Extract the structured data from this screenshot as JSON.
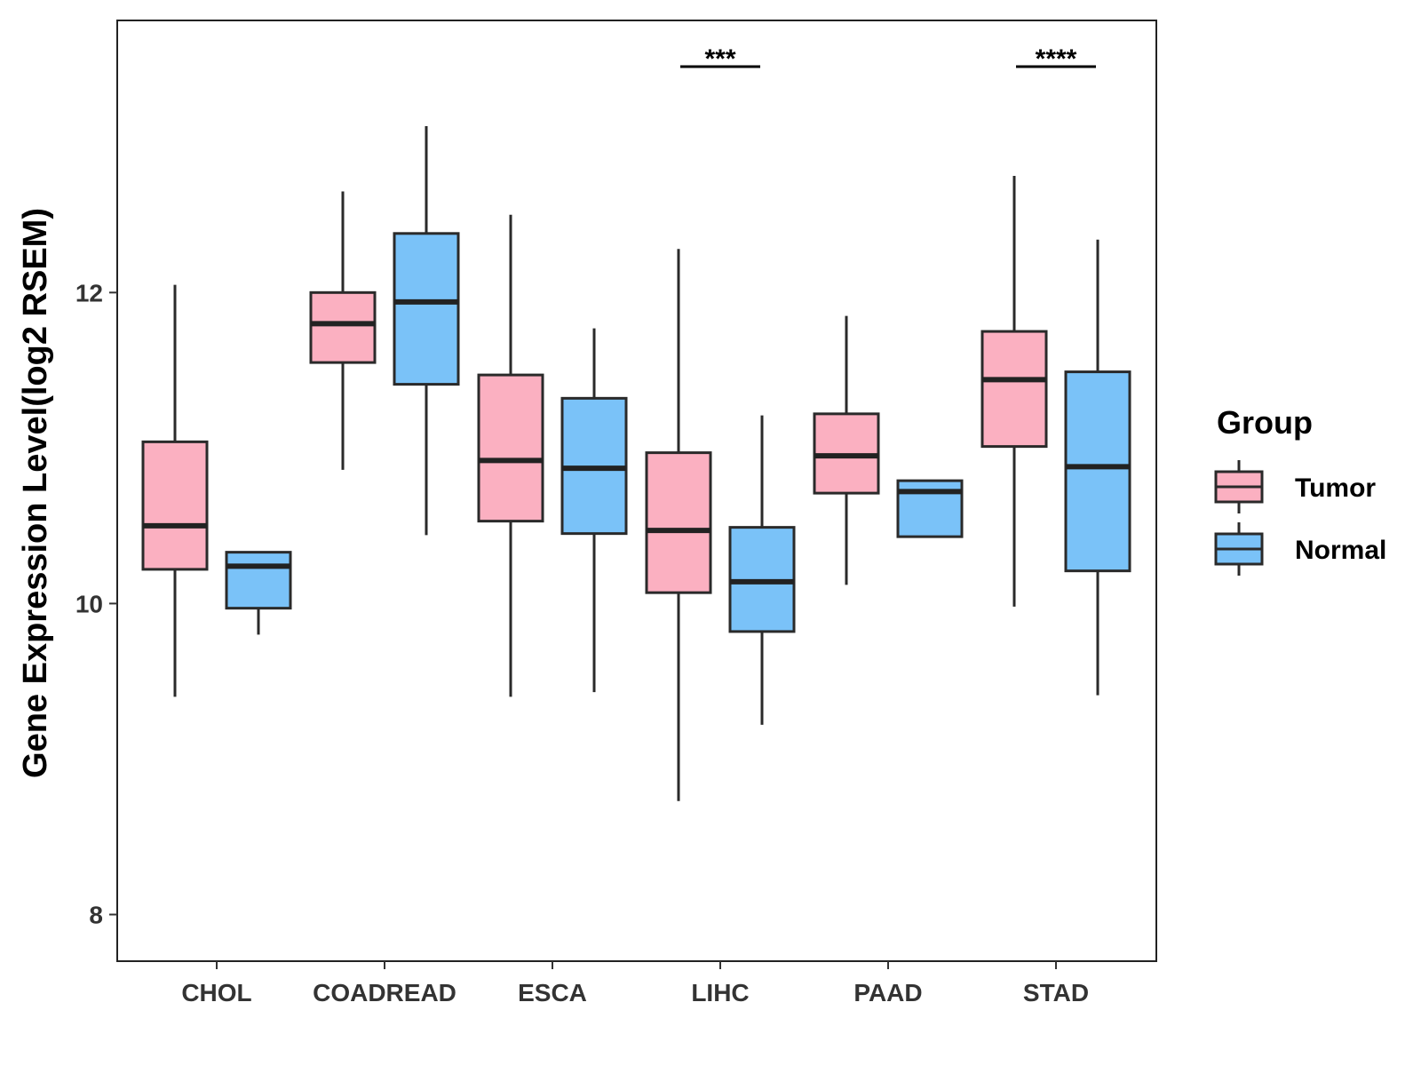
{
  "chart_data": {
    "type": "box",
    "title": "",
    "xlabel": "",
    "ylabel": "Gene Expression Level(log2 RSEM)",
    "ylim": [
      7.7,
      13.75
    ],
    "yticks": [
      8,
      10,
      12
    ],
    "categories": [
      "CHOL",
      "COADREAD",
      "ESCA",
      "LIHC",
      "PAAD",
      "STAD"
    ],
    "legend": {
      "title": "Group",
      "position": "right"
    },
    "grid": false,
    "series": [
      {
        "name": "Tumor",
        "color": "#FBB0C1",
        "boxes": [
          {
            "category": "CHOL",
            "min": 9.4,
            "q1": 10.22,
            "median": 10.5,
            "q3": 11.04,
            "max": 12.05
          },
          {
            "category": "COADREAD",
            "min": 10.86,
            "q1": 11.55,
            "median": 11.8,
            "q3": 12.0,
            "max": 12.65
          },
          {
            "category": "ESCA",
            "min": 9.4,
            "q1": 10.53,
            "median": 10.92,
            "q3": 11.47,
            "max": 12.5
          },
          {
            "category": "LIHC",
            "min": 8.73,
            "q1": 10.07,
            "median": 10.47,
            "q3": 10.97,
            "max": 12.28
          },
          {
            "category": "PAAD",
            "min": 10.12,
            "q1": 10.71,
            "median": 10.95,
            "q3": 11.22,
            "max": 11.85
          },
          {
            "category": "STAD",
            "min": 9.98,
            "q1": 11.01,
            "median": 11.44,
            "q3": 11.75,
            "max": 12.75
          }
        ]
      },
      {
        "name": "Normal",
        "color": "#7AC2F8",
        "boxes": [
          {
            "category": "CHOL",
            "min": 9.8,
            "q1": 9.97,
            "median": 10.24,
            "q3": 10.33,
            "max": 10.33
          },
          {
            "category": "COADREAD",
            "min": 10.44,
            "q1": 11.41,
            "median": 11.94,
            "q3": 12.38,
            "max": 13.07
          },
          {
            "category": "ESCA",
            "min": 9.43,
            "q1": 10.45,
            "median": 10.87,
            "q3": 11.32,
            "max": 11.77
          },
          {
            "category": "LIHC",
            "min": 9.22,
            "q1": 9.82,
            "median": 10.14,
            "q3": 10.49,
            "max": 11.21
          },
          {
            "category": "PAAD",
            "min": 10.43,
            "q1": 10.43,
            "median": 10.72,
            "q3": 10.79,
            "max": 10.79
          },
          {
            "category": "STAD",
            "min": 9.41,
            "q1": 10.21,
            "median": 10.88,
            "q3": 11.49,
            "max": 12.34
          }
        ]
      }
    ],
    "annotations": [
      {
        "category": "LIHC",
        "label": "***"
      },
      {
        "category": "STAD",
        "label": "****"
      }
    ]
  }
}
